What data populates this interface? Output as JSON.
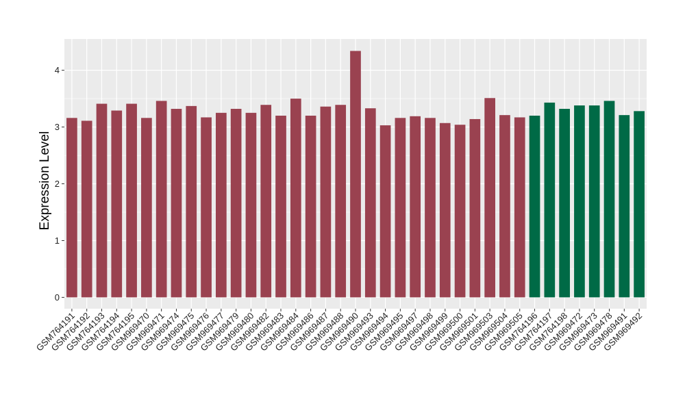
{
  "chart_data": {
    "type": "bar",
    "title": "",
    "xlabel": "",
    "ylabel": "Expression Level",
    "ylim": [
      -0.2,
      4.55
    ],
    "yticks": [
      0,
      1,
      2,
      3,
      4
    ],
    "grid": true,
    "legend": "none",
    "categories": [
      "GSM764191",
      "GSM764192",
      "GSM764193",
      "GSM764194",
      "GSM764195",
      "GSM969470",
      "GSM969471",
      "GSM969474",
      "GSM969475",
      "GSM969476",
      "GSM969477",
      "GSM969479",
      "GSM969480",
      "GSM969482",
      "GSM969483",
      "GSM969484",
      "GSM969486",
      "GSM969487",
      "GSM969488",
      "GSM969490",
      "GSM969493",
      "GSM969494",
      "GSM969495",
      "GSM969497",
      "GSM969498",
      "GSM969499",
      "GSM969500",
      "GSM969501",
      "GSM969503",
      "GSM969504",
      "GSM969505",
      "GSM764196",
      "GSM764197",
      "GSM764198",
      "GSM969472",
      "GSM969473",
      "GSM969478",
      "GSM969491",
      "GSM969492"
    ],
    "values": [
      3.16,
      3.11,
      3.41,
      3.29,
      3.41,
      3.16,
      3.46,
      3.32,
      3.37,
      3.17,
      3.25,
      3.32,
      3.25,
      3.39,
      3.2,
      3.5,
      3.2,
      3.36,
      3.39,
      4.34,
      3.33,
      3.03,
      3.16,
      3.19,
      3.16,
      3.07,
      3.04,
      3.14,
      3.51,
      3.21,
      3.17,
      3.2,
      3.43,
      3.32,
      3.38,
      3.38,
      3.46,
      3.21,
      3.28
    ],
    "bar_colors": [
      "#9a4250",
      "#9a4250",
      "#9a4250",
      "#9a4250",
      "#9a4250",
      "#9a4250",
      "#9a4250",
      "#9a4250",
      "#9a4250",
      "#9a4250",
      "#9a4250",
      "#9a4250",
      "#9a4250",
      "#9a4250",
      "#9a4250",
      "#9a4250",
      "#9a4250",
      "#9a4250",
      "#9a4250",
      "#9a4250",
      "#9a4250",
      "#9a4250",
      "#9a4250",
      "#9a4250",
      "#9a4250",
      "#9a4250",
      "#9a4250",
      "#9a4250",
      "#9a4250",
      "#9a4250",
      "#9a4250",
      "#006a46",
      "#006a46",
      "#006a46",
      "#006a46",
      "#006a46",
      "#006a46",
      "#006a46",
      "#006a46"
    ]
  },
  "colors": {
    "panel_background": "#ebebeb",
    "grid": "#ffffff",
    "group_1": "#9a4250",
    "group_2": "#006a46"
  }
}
